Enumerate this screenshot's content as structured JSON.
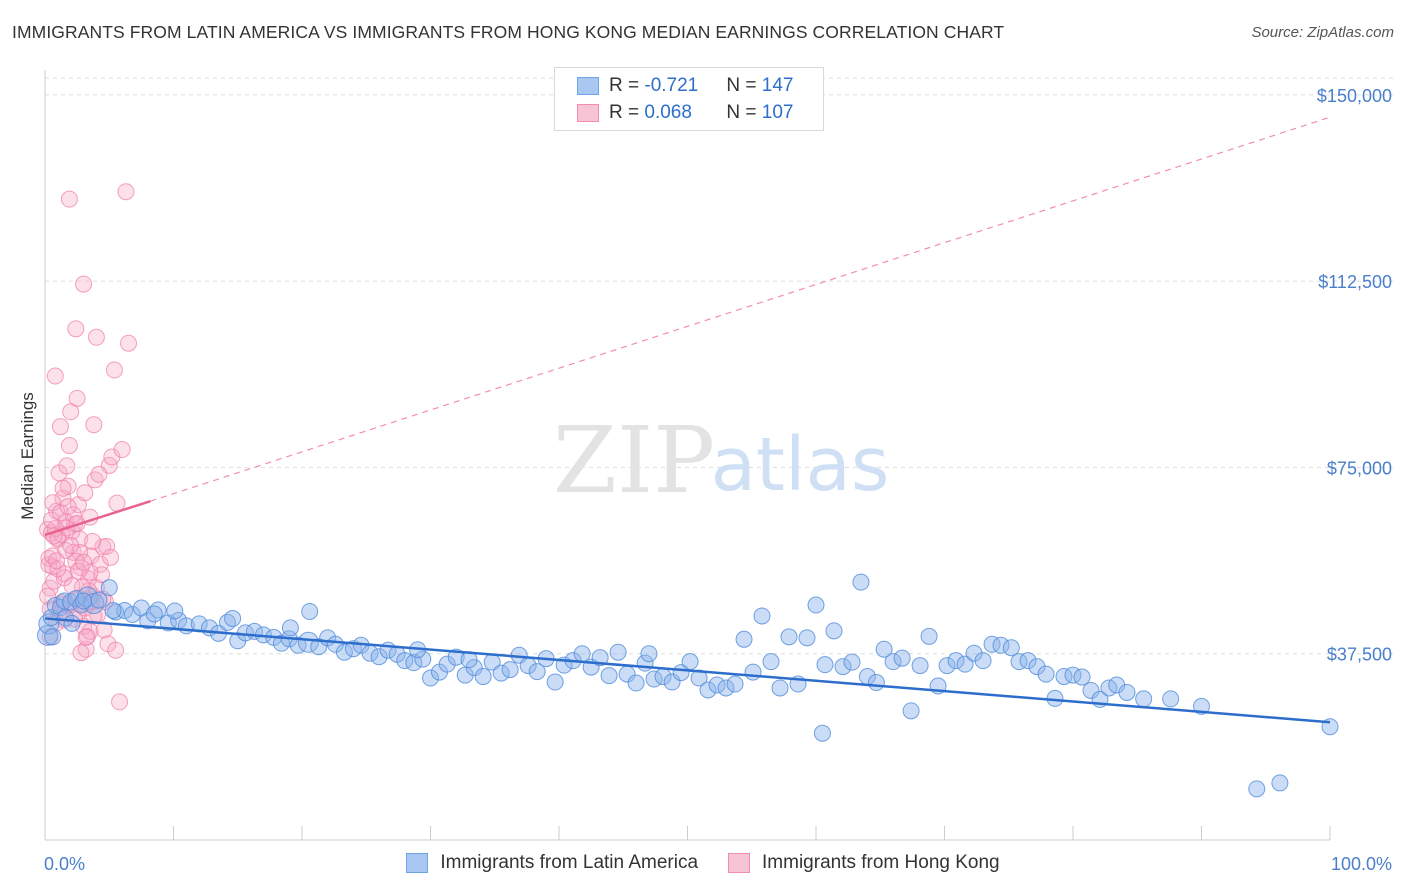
{
  "header": {
    "title": "IMMIGRANTS FROM LATIN AMERICA VS IMMIGRANTS FROM HONG KONG MEDIAN EARNINGS CORRELATION CHART",
    "source": "Source: ZipAtlas.com"
  },
  "colors": {
    "blue": "#6fa3e8",
    "blue_fill": "#a9c8f1",
    "blue_line": "#2d6ecc",
    "pink": "#f28db0",
    "pink_fill": "#f7b8cd",
    "pink_line": "#e8628f",
    "grid": "#dddddd",
    "label_blue": "#4a7fcb"
  },
  "legend": {
    "rows": [
      {
        "r_label": "R = ",
        "r_value": "-0.721",
        "n_label": "N = ",
        "n_value": "147"
      },
      {
        "r_label": "R = ",
        "r_value": "0.068",
        "n_label": "N = ",
        "n_value": "107"
      }
    ]
  },
  "bottom_legend": {
    "items": [
      "Immigrants from Latin America",
      "Immigrants from Hong Kong"
    ]
  },
  "watermark": {
    "zip": "ZIP",
    "atlas": "atlas"
  },
  "chart_data": {
    "type": "scatter",
    "title": "IMMIGRANTS FROM LATIN AMERICA VS IMMIGRANTS FROM HONG KONG MEDIAN EARNINGS CORRELATION CHART",
    "ylabel": "Median Earnings",
    "xlabel": "",
    "xlim": [
      0,
      100
    ],
    "ylim": [
      0,
      155000
    ],
    "x_tick_labels": [
      "0.0%",
      "100.0%"
    ],
    "y_ticks": [
      37500,
      75000,
      112500,
      150000
    ],
    "y_tick_labels": [
      "$37,500",
      "$75,000",
      "$112,500",
      "$150,000"
    ],
    "grid": true,
    "legend_position": "top-center",
    "series": [
      {
        "name": "Immigrants from Latin America",
        "color": "#6fa3e8",
        "r": -0.721,
        "n": 147,
        "trend": {
          "x": [
            0,
            100
          ],
          "y": [
            44600,
            23700
          ]
        },
        "points": [
          [
            0.2,
            41200
          ],
          [
            0.3,
            43500
          ],
          [
            0.5,
            44800
          ],
          [
            0.8,
            47200
          ],
          [
            1.2,
            46800
          ],
          [
            1.5,
            48100
          ],
          [
            2.0,
            47900
          ],
          [
            2.4,
            48600
          ],
          [
            2.8,
            47300
          ],
          [
            3.3,
            48900
          ],
          [
            3.8,
            47600
          ],
          [
            4.2,
            48300
          ],
          [
            5.0,
            50800
          ],
          [
            5.5,
            45900
          ],
          [
            6.2,
            46200
          ],
          [
            6.8,
            45400
          ],
          [
            7.5,
            46700
          ],
          [
            8.0,
            44100
          ],
          [
            8.8,
            46300
          ],
          [
            9.6,
            43700
          ],
          [
            10.4,
            44200
          ],
          [
            11.0,
            43100
          ],
          [
            12.0,
            43500
          ],
          [
            12.8,
            42700
          ],
          [
            13.5,
            41600
          ],
          [
            14.2,
            43800
          ],
          [
            15.0,
            40100
          ],
          [
            15.6,
            41700
          ],
          [
            16.3,
            42000
          ],
          [
            17.0,
            41300
          ],
          [
            17.8,
            40800
          ],
          [
            18.4,
            39600
          ],
          [
            19.0,
            40500
          ],
          [
            19.7,
            39200
          ],
          [
            20.5,
            39800
          ],
          [
            21.3,
            38900
          ],
          [
            22.0,
            40700
          ],
          [
            22.6,
            39400
          ],
          [
            23.3,
            37800
          ],
          [
            24.0,
            38500
          ],
          [
            24.6,
            39200
          ],
          [
            25.3,
            37600
          ],
          [
            26.0,
            36900
          ],
          [
            26.7,
            38200
          ],
          [
            27.4,
            37400
          ],
          [
            28.0,
            36100
          ],
          [
            28.7,
            35700
          ],
          [
            29.4,
            36400
          ],
          [
            30.0,
            32600
          ],
          [
            30.7,
            33800
          ],
          [
            31.3,
            35400
          ],
          [
            32.0,
            36800
          ],
          [
            32.7,
            33200
          ],
          [
            33.4,
            34700
          ],
          [
            34.1,
            32900
          ],
          [
            34.8,
            35800
          ],
          [
            35.5,
            33600
          ],
          [
            36.2,
            34300
          ],
          [
            36.9,
            37200
          ],
          [
            37.6,
            35100
          ],
          [
            38.3,
            33900
          ],
          [
            39.0,
            36500
          ],
          [
            39.7,
            31800
          ],
          [
            40.4,
            35200
          ],
          [
            41.1,
            36100
          ],
          [
            41.8,
            37500
          ],
          [
            42.5,
            34800
          ],
          [
            43.2,
            36700
          ],
          [
            43.9,
            33100
          ],
          [
            44.6,
            37800
          ],
          [
            45.3,
            33400
          ],
          [
            46.0,
            31600
          ],
          [
            46.7,
            35600
          ],
          [
            47.4,
            32400
          ],
          [
            48.1,
            32900
          ],
          [
            48.8,
            31800
          ],
          [
            49.5,
            33700
          ],
          [
            50.2,
            35900
          ],
          [
            50.9,
            32600
          ],
          [
            51.6,
            30200
          ],
          [
            52.3,
            31200
          ],
          [
            53.0,
            30600
          ],
          [
            53.7,
            31400
          ],
          [
            54.4,
            40400
          ],
          [
            55.1,
            33800
          ],
          [
            55.8,
            45100
          ],
          [
            56.5,
            35900
          ],
          [
            57.2,
            30600
          ],
          [
            57.9,
            40900
          ],
          [
            58.6,
            31400
          ],
          [
            59.3,
            40700
          ],
          [
            60.0,
            47300
          ],
          [
            60.7,
            35300
          ],
          [
            61.4,
            42100
          ],
          [
            62.1,
            34900
          ],
          [
            62.8,
            35800
          ],
          [
            63.5,
            51900
          ],
          [
            64.0,
            32900
          ],
          [
            64.7,
            31700
          ],
          [
            65.3,
            38400
          ],
          [
            66.0,
            35900
          ],
          [
            66.7,
            36600
          ],
          [
            67.4,
            26000
          ],
          [
            68.1,
            35100
          ],
          [
            68.8,
            41000
          ],
          [
            69.5,
            31000
          ],
          [
            70.2,
            35100
          ],
          [
            70.9,
            36100
          ],
          [
            71.6,
            35400
          ],
          [
            72.3,
            37600
          ],
          [
            73.0,
            36100
          ],
          [
            73.7,
            39400
          ],
          [
            74.4,
            39200
          ],
          [
            75.2,
            38700
          ],
          [
            75.8,
            35900
          ],
          [
            76.5,
            36100
          ],
          [
            77.2,
            34900
          ],
          [
            77.9,
            33400
          ],
          [
            78.6,
            28500
          ],
          [
            79.3,
            32900
          ],
          [
            80.0,
            33200
          ],
          [
            80.7,
            32800
          ],
          [
            81.4,
            30100
          ],
          [
            82.1,
            28300
          ],
          [
            82.8,
            30600
          ],
          [
            83.4,
            31200
          ],
          [
            84.2,
            29700
          ],
          [
            85.5,
            28400
          ],
          [
            87.6,
            28400
          ],
          [
            90.0,
            26900
          ],
          [
            94.3,
            10300
          ],
          [
            96.1,
            11500
          ],
          [
            100.0,
            22800
          ],
          [
            60.5,
            21500
          ],
          [
            47.0,
            37500
          ],
          [
            20.6,
            46000
          ],
          [
            10.1,
            46100
          ],
          [
            5.3,
            46200
          ],
          [
            3.0,
            48100
          ],
          [
            8.5,
            45500
          ],
          [
            14.6,
            44600
          ],
          [
            19.1,
            42700
          ],
          [
            1.6,
            44700
          ],
          [
            2.1,
            43600
          ],
          [
            0.6,
            40900
          ],
          [
            29.0,
            38300
          ],
          [
            33.0,
            36300
          ]
        ]
      },
      {
        "name": "Immigrants from Hong Kong",
        "color": "#f28db0",
        "r": 0.068,
        "n": 107,
        "trend_solid": {
          "x": [
            0,
            8.2
          ],
          "y": [
            61400,
            68200
          ]
        },
        "trend_dashed": {
          "x": [
            8.2,
            100
          ],
          "y": [
            68200,
            145500
          ]
        },
        "points": [
          [
            0.2,
            62500
          ],
          [
            0.3,
            56700
          ],
          [
            0.4,
            50700
          ],
          [
            0.5,
            61800
          ],
          [
            0.6,
            55000
          ],
          [
            0.7,
            52100
          ],
          [
            0.8,
            93400
          ],
          [
            0.9,
            66200
          ],
          [
            1.0,
            60800
          ],
          [
            1.1,
            73900
          ],
          [
            1.2,
            83200
          ],
          [
            1.3,
            47400
          ],
          [
            1.4,
            68800
          ],
          [
            1.5,
            53600
          ],
          [
            1.6,
            64100
          ],
          [
            1.7,
            75300
          ],
          [
            1.8,
            71200
          ],
          [
            1.9,
            79400
          ],
          [
            2.0,
            86200
          ],
          [
            2.1,
            62100
          ],
          [
            2.2,
            57900
          ],
          [
            2.3,
            63600
          ],
          [
            2.4,
            102900
          ],
          [
            2.5,
            88900
          ],
          [
            2.6,
            67500
          ],
          [
            2.7,
            60600
          ],
          [
            2.8,
            54800
          ],
          [
            2.9,
            47600
          ],
          [
            3.0,
            111900
          ],
          [
            3.1,
            69900
          ],
          [
            3.2,
            38400
          ],
          [
            3.3,
            41000
          ],
          [
            3.4,
            52600
          ],
          [
            3.5,
            65000
          ],
          [
            3.6,
            57200
          ],
          [
            3.7,
            49200
          ],
          [
            3.8,
            83600
          ],
          [
            3.9,
            72500
          ],
          [
            4.0,
            101200
          ],
          [
            4.1,
            45400
          ],
          [
            4.3,
            55500
          ],
          [
            4.5,
            59000
          ],
          [
            4.7,
            48000
          ],
          [
            4.9,
            39500
          ],
          [
            5.0,
            75400
          ],
          [
            5.2,
            77100
          ],
          [
            5.4,
            94600
          ],
          [
            5.6,
            67800
          ],
          [
            5.8,
            27800
          ],
          [
            6.0,
            78600
          ],
          [
            6.5,
            100000
          ],
          [
            6.3,
            130500
          ],
          [
            1.5,
            52800
          ],
          [
            2.0,
            47300
          ],
          [
            2.5,
            45500
          ],
          [
            3.0,
            43000
          ],
          [
            3.5,
            42000
          ],
          [
            4.0,
            50800
          ],
          [
            1.0,
            60500
          ],
          [
            1.3,
            61500
          ],
          [
            1.7,
            62800
          ],
          [
            2.2,
            65500
          ],
          [
            2.7,
            57900
          ],
          [
            0.9,
            43700
          ],
          [
            1.1,
            45600
          ],
          [
            1.9,
            129000
          ],
          [
            0.4,
            46500
          ],
          [
            0.6,
            67900
          ],
          [
            0.8,
            62700
          ],
          [
            1.6,
            58300
          ],
          [
            2.4,
            56100
          ],
          [
            2.8,
            37700
          ],
          [
            3.2,
            40800
          ],
          [
            3.6,
            47900
          ],
          [
            4.4,
            53400
          ],
          [
            4.8,
            59100
          ],
          [
            5.1,
            56900
          ],
          [
            5.5,
            38200
          ],
          [
            1.4,
            70800
          ],
          [
            2.6,
            54100
          ],
          [
            3.4,
            50200
          ],
          [
            0.3,
            55400
          ],
          [
            0.5,
            64400
          ],
          [
            0.7,
            61200
          ],
          [
            1.2,
            65900
          ],
          [
            1.8,
            67100
          ],
          [
            2.3,
            44500
          ],
          [
            2.9,
            50900
          ],
          [
            3.7,
            60100
          ],
          [
            4.2,
            73600
          ],
          [
            0.2,
            49100
          ],
          [
            0.6,
            57200
          ],
          [
            1.0,
            54600
          ],
          [
            1.5,
            44300
          ],
          [
            2.1,
            51200
          ],
          [
            2.6,
            48700
          ],
          [
            3.1,
            46700
          ],
          [
            3.5,
            53900
          ],
          [
            4.6,
            42300
          ],
          [
            0.4,
            40900
          ],
          [
            0.9,
            56200
          ],
          [
            1.3,
            47800
          ],
          [
            2.0,
            59300
          ],
          [
            2.5,
            63700
          ],
          [
            3.0,
            55900
          ],
          [
            3.8,
            45100
          ],
          [
            4.5,
            48500
          ]
        ]
      }
    ]
  }
}
